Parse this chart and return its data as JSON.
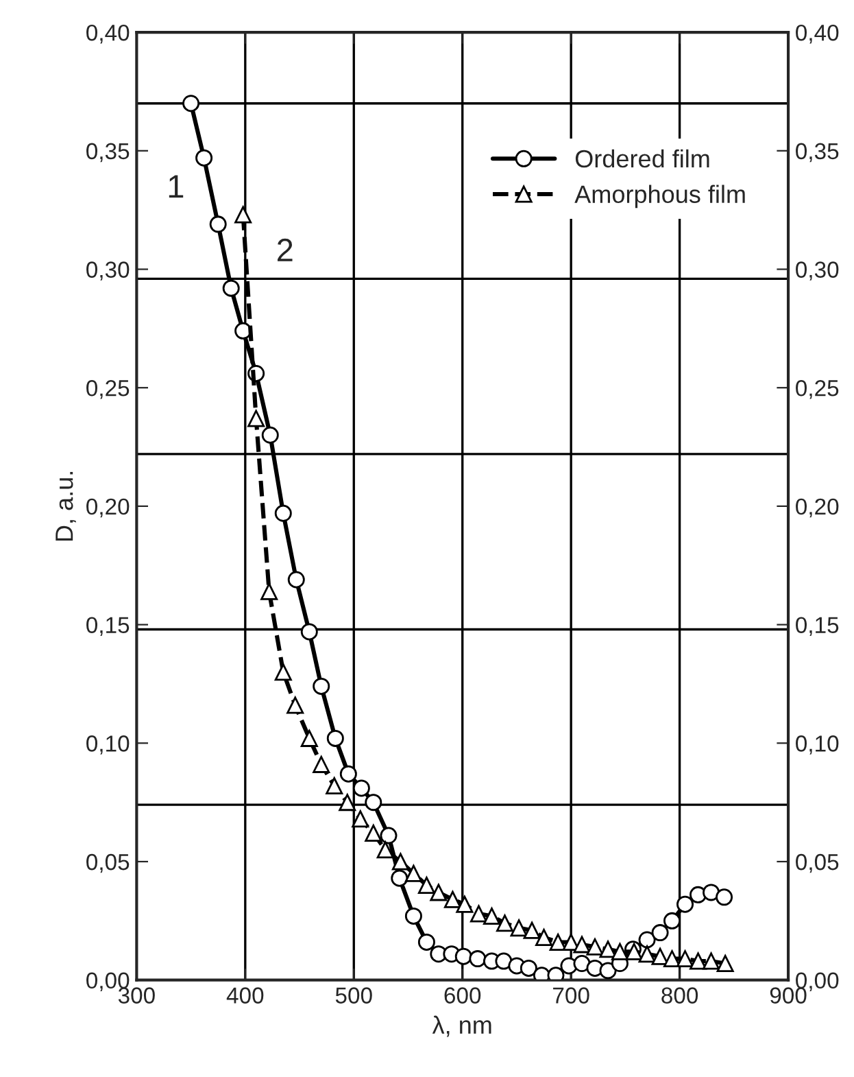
{
  "chart_data": {
    "type": "line",
    "xlabel": "λ, nm",
    "ylabel": "D, a.u.",
    "xlim": [
      300,
      900
    ],
    "xticks": [
      300,
      400,
      500,
      600,
      700,
      800,
      900
    ],
    "ylim": [
      0,
      0.4
    ],
    "yticks": [
      {
        "value": 0,
        "label": "0,00"
      },
      {
        "value": 0.05,
        "label": "0,05"
      },
      {
        "value": 0.1,
        "label": "0,10"
      },
      {
        "value": 0.15,
        "label": "0,15"
      },
      {
        "value": 0.2,
        "label": "0,20"
      },
      {
        "value": 0.25,
        "label": "0,25"
      },
      {
        "value": 0.3,
        "label": "0,30"
      },
      {
        "value": 0.35,
        "label": "0,35"
      },
      {
        "value": 0.4,
        "label": "0,40"
      }
    ],
    "y2lim": [
      0,
      0.4
    ],
    "y2ticks": [
      {
        "value": 0,
        "label": "0,00"
      },
      {
        "value": 0.05,
        "label": "0,05"
      },
      {
        "value": 0.1,
        "label": "0,10"
      },
      {
        "value": 0.15,
        "label": "0,15"
      },
      {
        "value": 0.2,
        "label": "0,20"
      },
      {
        "value": 0.25,
        "label": "0,25"
      },
      {
        "value": 0.3,
        "label": "0,30"
      },
      {
        "value": 0.35,
        "label": "0,35"
      },
      {
        "value": 0.4,
        "label": "0,40"
      }
    ],
    "grid": "x",
    "legend": "top right",
    "ref_lines": [
      {
        "axis": "y",
        "value": 0.074
      },
      {
        "axis": "y",
        "value": 0.148
      },
      {
        "axis": "y",
        "value": 0.222
      },
      {
        "axis": "y",
        "value": 0.296
      },
      {
        "axis": "y",
        "value": 0.37
      }
    ],
    "annotations": [
      "1",
      "2"
    ],
    "series": [
      {
        "name": "Ordered film",
        "color": "#000000",
        "marker": "circle",
        "line_style": "solid",
        "x": [
          350,
          362,
          375,
          387,
          398,
          410,
          423,
          435,
          447,
          459,
          470,
          483,
          495,
          507,
          518,
          532,
          542,
          555,
          567,
          578,
          590,
          601,
          614,
          627,
          638,
          650,
          661,
          673,
          686,
          698,
          710,
          722,
          734,
          745,
          757,
          770,
          782,
          793,
          805,
          817,
          829,
          841
        ],
        "values": [
          0.37,
          0.347,
          0.319,
          0.292,
          0.274,
          0.256,
          0.23,
          0.197,
          0.169,
          0.147,
          0.124,
          0.102,
          0.087,
          0.081,
          0.075,
          0.061,
          0.043,
          0.027,
          0.016,
          0.011,
          0.011,
          0.01,
          0.009,
          0.008,
          0.008,
          0.006,
          0.005,
          0.002,
          0.002,
          0.006,
          0.007,
          0.005,
          0.004,
          0.007,
          0.013,
          0.017,
          0.02,
          0.025,
          0.032,
          0.036,
          0.037,
          0.035
        ]
      },
      {
        "name": "Amorphous film",
        "color": "#000000",
        "marker": "triangle",
        "line_style": "dashed",
        "x": [
          398,
          410,
          422,
          435,
          446,
          459,
          470,
          482,
          494,
          506,
          518,
          529,
          543,
          555,
          567,
          578,
          591,
          602,
          615,
          627,
          639,
          652,
          664,
          675,
          688,
          700,
          710,
          722,
          734,
          745,
          758,
          770,
          782,
          793,
          805,
          817,
          829,
          842
        ],
        "values": [
          0.323,
          0.237,
          0.164,
          0.13,
          0.116,
          0.102,
          0.091,
          0.082,
          0.075,
          0.068,
          0.062,
          0.055,
          0.05,
          0.045,
          0.04,
          0.037,
          0.034,
          0.032,
          0.028,
          0.027,
          0.024,
          0.022,
          0.021,
          0.018,
          0.016,
          0.016,
          0.015,
          0.014,
          0.013,
          0.012,
          0.012,
          0.011,
          0.01,
          0.009,
          0.009,
          0.008,
          0.008,
          0.007
        ]
      }
    ]
  }
}
